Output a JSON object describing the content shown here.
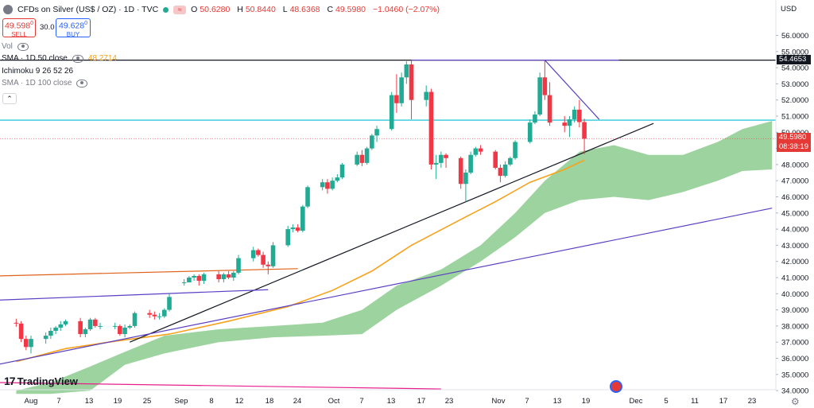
{
  "header": {
    "symbol_title": "CFDs on Silver (US$ / OZ) · 1D · TVC",
    "ohlc": [
      {
        "label": "O",
        "value": "50.6280"
      },
      {
        "label": "H",
        "value": "50.8440"
      },
      {
        "label": "L",
        "value": "48.6368"
      },
      {
        "label": "C",
        "value": "49.5980"
      },
      {
        "label": "",
        "value": "−1.0460 (−2.07%)"
      }
    ],
    "status_badge": "≈"
  },
  "trade": {
    "sell_price": "49.598",
    "sell_sup": "0",
    "sell_label": "SELL",
    "spread": "30.0",
    "buy_price": "49.628",
    "buy_sup": "0",
    "buy_label": "BUY"
  },
  "indicators": {
    "vol": "Vol",
    "sma50": "SMA · 1D 50 close",
    "sma50_value": "48.2714",
    "ichimoku": "Ichimoku 9 26 52 26",
    "sma100": "SMA · 1D 100 close",
    "collapse": "⌃"
  },
  "price_axis": {
    "currency": "USD",
    "labels": [
      "56.0000",
      "55.0000",
      "54.0000",
      "53.0000",
      "52.0000",
      "51.0000",
      "50.0000",
      "49.0000",
      "48.0000",
      "47.0000",
      "46.0000",
      "45.0000",
      "44.0000",
      "43.0000",
      "42.0000",
      "41.0000",
      "40.0000",
      "39.0000",
      "38.0000",
      "37.0000",
      "36.0000",
      "35.0000",
      "34.0000"
    ],
    "resistance_tag": "54.4653",
    "last_price_tag": "49.5980",
    "countdown_tag": "08:38:19"
  },
  "time_axis": {
    "labels": [
      "Aug",
      "7",
      "13",
      "19",
      "25",
      "Sep",
      "8",
      "12",
      "18",
      "24",
      "Oct",
      "7",
      "13",
      "17",
      "23",
      "Nov",
      "7",
      "13",
      "19",
      "Dec",
      "5",
      "11",
      "17",
      "23"
    ]
  },
  "logo": {
    "text": "TradingView",
    "mark": "17"
  },
  "colors": {
    "up": "#22ab94",
    "down": "#f23645",
    "sma50": "#f7a21b",
    "cloud": "#4caf50",
    "horizontal_level": "#00bcd4",
    "resistance": "#131722",
    "trendline_purple": "#5b3fc4",
    "trendline_orange": "#e0621a"
  },
  "chart_data": {
    "type": "candlestick",
    "symbol": "TVC:SILVER",
    "interval": "1D",
    "ylim": [
      34,
      56.5
    ],
    "candles": [
      {
        "date": "2025-07-29",
        "o": 38.2,
        "h": 38.45,
        "l": 37.95,
        "c": 38.15
      },
      {
        "date": "2025-07-30",
        "o": 38.15,
        "h": 38.3,
        "l": 37.0,
        "c": 37.2
      },
      {
        "date": "2025-07-31",
        "o": 37.2,
        "h": 37.4,
        "l": 36.5,
        "c": 36.7
      },
      {
        "date": "2025-08-01",
        "o": 36.7,
        "h": 37.4,
        "l": 36.3,
        "c": 37.2
      },
      {
        "date": "2025-08-04",
        "o": 37.2,
        "h": 37.6,
        "l": 36.9,
        "c": 37.4
      },
      {
        "date": "2025-08-05",
        "o": 37.4,
        "h": 37.9,
        "l": 37.2,
        "c": 37.7
      },
      {
        "date": "2025-08-06",
        "o": 37.7,
        "h": 38.0,
        "l": 37.5,
        "c": 37.9
      },
      {
        "date": "2025-08-07",
        "o": 37.9,
        "h": 38.3,
        "l": 37.7,
        "c": 38.1
      },
      {
        "date": "2025-08-08",
        "o": 38.1,
        "h": 38.4,
        "l": 38.0,
        "c": 38.3
      },
      {
        "date": "2025-08-11",
        "o": 38.3,
        "h": 38.5,
        "l": 37.3,
        "c": 37.5
      },
      {
        "date": "2025-08-12",
        "o": 37.5,
        "h": 37.9,
        "l": 37.3,
        "c": 37.8
      },
      {
        "date": "2025-08-13",
        "o": 37.8,
        "h": 38.5,
        "l": 37.7,
        "c": 38.4
      },
      {
        "date": "2025-08-14",
        "o": 38.4,
        "h": 38.5,
        "l": 37.9,
        "c": 38.0
      },
      {
        "date": "2025-08-15",
        "o": 38.0,
        "h": 38.2,
        "l": 37.8,
        "c": 38.0
      },
      {
        "date": "2025-08-18",
        "o": 38.0,
        "h": 38.2,
        "l": 37.8,
        "c": 38.0
      },
      {
        "date": "2025-08-19",
        "o": 38.0,
        "h": 38.1,
        "l": 37.4,
        "c": 37.5
      },
      {
        "date": "2025-08-20",
        "o": 37.5,
        "h": 38.1,
        "l": 37.3,
        "c": 37.9
      },
      {
        "date": "2025-08-21",
        "o": 37.9,
        "h": 38.1,
        "l": 37.8,
        "c": 38.0
      },
      {
        "date": "2025-08-22",
        "o": 38.0,
        "h": 38.9,
        "l": 37.9,
        "c": 38.8
      },
      {
        "date": "2025-08-25",
        "o": 38.8,
        "h": 39.0,
        "l": 38.5,
        "c": 38.7
      },
      {
        "date": "2025-08-26",
        "o": 38.7,
        "h": 38.9,
        "l": 38.4,
        "c": 38.6
      },
      {
        "date": "2025-08-27",
        "o": 38.6,
        "h": 38.8,
        "l": 38.4,
        "c": 38.6
      },
      {
        "date": "2025-08-28",
        "o": 38.6,
        "h": 39.1,
        "l": 38.5,
        "c": 39.0
      },
      {
        "date": "2025-08-29",
        "o": 39.0,
        "h": 40.0,
        "l": 38.9,
        "c": 39.8
      },
      {
        "date": "2025-09-01",
        "o": 40.7,
        "h": 40.9,
        "l": 40.5,
        "c": 40.7
      },
      {
        "date": "2025-09-02",
        "o": 40.7,
        "h": 41.1,
        "l": 40.7,
        "c": 41.0
      },
      {
        "date": "2025-09-03",
        "o": 41.0,
        "h": 41.2,
        "l": 40.8,
        "c": 41.1
      },
      {
        "date": "2025-09-04",
        "o": 41.1,
        "h": 41.2,
        "l": 40.5,
        "c": 40.8
      },
      {
        "date": "2025-09-05",
        "o": 40.8,
        "h": 41.3,
        "l": 40.6,
        "c": 41.2
      },
      {
        "date": "2025-09-08",
        "o": 41.2,
        "h": 41.4,
        "l": 40.7,
        "c": 40.9
      },
      {
        "date": "2025-09-09",
        "o": 40.9,
        "h": 41.3,
        "l": 40.7,
        "c": 41.2
      },
      {
        "date": "2025-09-10",
        "o": 41.2,
        "h": 41.4,
        "l": 40.9,
        "c": 41.0
      },
      {
        "date": "2025-09-11",
        "o": 41.0,
        "h": 41.4,
        "l": 40.8,
        "c": 41.3
      },
      {
        "date": "2025-09-12",
        "o": 41.3,
        "h": 42.4,
        "l": 41.2,
        "c": 42.2
      },
      {
        "date": "2025-09-15",
        "o": 42.2,
        "h": 42.9,
        "l": 42.0,
        "c": 42.7
      },
      {
        "date": "2025-09-16",
        "o": 42.7,
        "h": 42.8,
        "l": 42.3,
        "c": 42.4
      },
      {
        "date": "2025-09-17",
        "o": 42.4,
        "h": 42.6,
        "l": 41.6,
        "c": 41.8
      },
      {
        "date": "2025-09-18",
        "o": 41.8,
        "h": 42.0,
        "l": 41.2,
        "c": 41.7
      },
      {
        "date": "2025-09-19",
        "o": 41.7,
        "h": 43.2,
        "l": 41.6,
        "c": 43.0
      },
      {
        "date": "2025-09-22",
        "o": 43.0,
        "h": 44.2,
        "l": 42.9,
        "c": 44.0
      },
      {
        "date": "2025-09-23",
        "o": 44.0,
        "h": 44.3,
        "l": 43.8,
        "c": 44.1
      },
      {
        "date": "2025-09-24",
        "o": 44.1,
        "h": 44.3,
        "l": 43.8,
        "c": 43.9
      },
      {
        "date": "2025-09-25",
        "o": 43.9,
        "h": 45.5,
        "l": 43.8,
        "c": 45.4
      },
      {
        "date": "2025-09-26",
        "o": 45.4,
        "h": 46.7,
        "l": 45.3,
        "c": 46.6
      },
      {
        "date": "2025-09-29",
        "o": 46.6,
        "h": 47.1,
        "l": 46.4,
        "c": 46.9
      },
      {
        "date": "2025-09-30",
        "o": 46.9,
        "h": 47.1,
        "l": 46.2,
        "c": 46.5
      },
      {
        "date": "2025-10-01",
        "o": 46.5,
        "h": 47.2,
        "l": 46.4,
        "c": 47.0
      },
      {
        "date": "2025-10-02",
        "o": 47.0,
        "h": 47.4,
        "l": 46.9,
        "c": 47.2
      },
      {
        "date": "2025-10-03",
        "o": 47.2,
        "h": 48.1,
        "l": 47.1,
        "c": 48.0
      },
      {
        "date": "2025-10-06",
        "o": 48.0,
        "h": 48.8,
        "l": 47.9,
        "c": 48.6
      },
      {
        "date": "2025-10-07",
        "o": 48.6,
        "h": 48.9,
        "l": 47.9,
        "c": 48.1
      },
      {
        "date": "2025-10-08",
        "o": 48.1,
        "h": 49.1,
        "l": 48.0,
        "c": 49.0
      },
      {
        "date": "2025-10-09",
        "o": 49.0,
        "h": 49.9,
        "l": 48.9,
        "c": 49.8
      },
      {
        "date": "2025-10-10",
        "o": 49.8,
        "h": 50.4,
        "l": 49.4,
        "c": 50.2
      },
      {
        "date": "2025-10-13",
        "o": 50.2,
        "h": 52.5,
        "l": 50.1,
        "c": 52.3
      },
      {
        "date": "2025-10-14",
        "o": 52.3,
        "h": 53.6,
        "l": 51.2,
        "c": 51.8
      },
      {
        "date": "2025-10-15",
        "o": 51.8,
        "h": 53.7,
        "l": 51.6,
        "c": 53.4
      },
      {
        "date": "2025-10-16",
        "o": 53.4,
        "h": 54.4,
        "l": 53.0,
        "c": 54.2
      },
      {
        "date": "2025-10-17",
        "o": 54.2,
        "h": 54.47,
        "l": 50.8,
        "c": 52.0
      },
      {
        "date": "2025-10-20",
        "o": 52.0,
        "h": 52.9,
        "l": 51.6,
        "c": 52.5
      },
      {
        "date": "2025-10-21",
        "o": 52.5,
        "h": 52.7,
        "l": 47.7,
        "c": 48.0
      },
      {
        "date": "2025-10-22",
        "o": 48.0,
        "h": 48.6,
        "l": 47.1,
        "c": 48.1
      },
      {
        "date": "2025-10-23",
        "o": 48.1,
        "h": 48.8,
        "l": 47.8,
        "c": 48.6
      },
      {
        "date": "2025-10-24",
        "o": 48.6,
        "h": 48.7,
        "l": 47.8,
        "c": 48.4
      },
      {
        "date": "2025-10-27",
        "o": 48.4,
        "h": 48.5,
        "l": 46.5,
        "c": 46.8
      },
      {
        "date": "2025-10-28",
        "o": 46.8,
        "h": 47.7,
        "l": 45.7,
        "c": 47.5
      },
      {
        "date": "2025-10-29",
        "o": 47.5,
        "h": 48.8,
        "l": 47.4,
        "c": 48.6
      },
      {
        "date": "2025-10-30",
        "o": 48.6,
        "h": 49.1,
        "l": 48.5,
        "c": 49.0
      },
      {
        "date": "2025-10-31",
        "o": 49.0,
        "h": 49.2,
        "l": 48.6,
        "c": 48.8
      },
      {
        "date": "2025-11-03",
        "o": 48.8,
        "h": 48.9,
        "l": 47.7,
        "c": 47.8
      },
      {
        "date": "2025-11-04",
        "o": 47.8,
        "h": 48.0,
        "l": 46.9,
        "c": 47.3
      },
      {
        "date": "2025-11-05",
        "o": 47.3,
        "h": 48.2,
        "l": 47.2,
        "c": 48.0
      },
      {
        "date": "2025-11-06",
        "o": 48.0,
        "h": 48.5,
        "l": 47.9,
        "c": 48.4
      },
      {
        "date": "2025-11-07",
        "o": 48.4,
        "h": 49.5,
        "l": 48.3,
        "c": 49.4
      },
      {
        "date": "2025-11-10",
        "o": 49.4,
        "h": 50.8,
        "l": 49.3,
        "c": 50.6
      },
      {
        "date": "2025-11-11",
        "o": 50.6,
        "h": 51.3,
        "l": 50.5,
        "c": 51.1
      },
      {
        "date": "2025-11-12",
        "o": 51.1,
        "h": 53.7,
        "l": 51.0,
        "c": 53.4
      },
      {
        "date": "2025-11-13",
        "o": 53.4,
        "h": 54.46,
        "l": 52.0,
        "c": 52.3
      },
      {
        "date": "2025-11-14",
        "o": 52.3,
        "h": 53.1,
        "l": 50.4,
        "c": 50.6
      },
      {
        "date": "2025-11-17",
        "o": 50.6,
        "h": 51.0,
        "l": 50.0,
        "c": 50.4
      },
      {
        "date": "2025-11-18",
        "o": 50.4,
        "h": 51.0,
        "l": 49.7,
        "c": 50.8
      },
      {
        "date": "2025-11-19",
        "o": 50.8,
        "h": 51.6,
        "l": 50.6,
        "c": 51.4
      },
      {
        "date": "2025-11-20",
        "o": 51.4,
        "h": 52.0,
        "l": 50.3,
        "c": 50.63
      },
      {
        "date": "2025-11-21",
        "o": 50.63,
        "h": 50.84,
        "l": 48.64,
        "c": 49.6
      }
    ],
    "sma50": [
      {
        "date": "2025-07-29",
        "v": 35.8
      },
      {
        "date": "2025-08-08",
        "v": 36.6
      },
      {
        "date": "2025-08-19",
        "v": 37.1
      },
      {
        "date": "2025-08-29",
        "v": 37.5
      },
      {
        "date": "2025-09-10",
        "v": 38.3
      },
      {
        "date": "2025-09-22",
        "v": 39.2
      },
      {
        "date": "2025-10-01",
        "v": 40.2
      },
      {
        "date": "2025-10-09",
        "v": 41.4
      },
      {
        "date": "2025-10-17",
        "v": 43.0
      },
      {
        "date": "2025-10-27",
        "v": 44.6
      },
      {
        "date": "2025-11-03",
        "v": 45.7
      },
      {
        "date": "2025-11-10",
        "v": 46.9
      },
      {
        "date": "2025-11-17",
        "v": 47.7
      },
      {
        "date": "2025-11-21",
        "v": 48.27
      }
    ],
    "ichimoku_cloud": {
      "upper": [
        {
          "date": "2025-07-29",
          "v": 34.0
        },
        {
          "date": "2025-08-05",
          "v": 34.5
        },
        {
          "date": "2025-08-13",
          "v": 35.5
        },
        {
          "date": "2025-08-20",
          "v": 36.4
        },
        {
          "date": "2025-08-28",
          "v": 37.4
        },
        {
          "date": "2025-09-08",
          "v": 37.8
        },
        {
          "date": "2025-09-19",
          "v": 38.0
        },
        {
          "date": "2025-09-29",
          "v": 38.2
        },
        {
          "date": "2025-10-07",
          "v": 39.0
        },
        {
          "date": "2025-10-14",
          "v": 40.5
        },
        {
          "date": "2025-10-23",
          "v": 41.5
        },
        {
          "date": "2025-10-31",
          "v": 43.0
        },
        {
          "date": "2025-11-07",
          "v": 45.0
        },
        {
          "date": "2025-11-13",
          "v": 47.0
        },
        {
          "date": "2025-11-20",
          "v": 48.8
        },
        {
          "date": "2025-11-27",
          "v": 49.2
        },
        {
          "date": "2025-12-04",
          "v": 48.6
        },
        {
          "date": "2025-12-11",
          "v": 48.6
        },
        {
          "date": "2025-12-18",
          "v": 49.4
        },
        {
          "date": "2025-12-23",
          "v": 50.2
        },
        {
          "date": "2025-12-29",
          "v": 50.7
        }
      ],
      "lower": [
        {
          "date": "2025-07-29",
          "v": 33.8
        },
        {
          "date": "2025-08-05",
          "v": 33.8
        },
        {
          "date": "2025-08-13",
          "v": 34.0
        },
        {
          "date": "2025-08-20",
          "v": 35.6
        },
        {
          "date": "2025-08-28",
          "v": 36.3
        },
        {
          "date": "2025-09-08",
          "v": 37.0
        },
        {
          "date": "2025-09-19",
          "v": 37.3
        },
        {
          "date": "2025-09-29",
          "v": 37.4
        },
        {
          "date": "2025-10-07",
          "v": 37.5
        },
        {
          "date": "2025-10-14",
          "v": 39.0
        },
        {
          "date": "2025-10-23",
          "v": 40.5
        },
        {
          "date": "2025-10-31",
          "v": 42.0
        },
        {
          "date": "2025-11-07",
          "v": 43.5
        },
        {
          "date": "2025-11-13",
          "v": 45.0
        },
        {
          "date": "2025-11-20",
          "v": 45.8
        },
        {
          "date": "2025-11-27",
          "v": 46.0
        },
        {
          "date": "2025-12-04",
          "v": 45.8
        },
        {
          "date": "2025-12-11",
          "v": 46.3
        },
        {
          "date": "2025-12-18",
          "v": 47.0
        },
        {
          "date": "2025-12-23",
          "v": 47.6
        },
        {
          "date": "2025-12-29",
          "v": 47.7
        }
      ]
    },
    "drawings": [
      {
        "name": "resistance-line",
        "type": "horizontal",
        "price": 54.4653,
        "color": "#131722"
      },
      {
        "name": "level-line",
        "type": "horizontal",
        "price": 50.75,
        "color": "#00bcd4"
      },
      {
        "name": "support-trendline",
        "type": "segment",
        "from": {
          "date": "2025-08-21",
          "price": 37.0
        },
        "to": {
          "date": "2025-12-05",
          "price": 50.55
        },
        "color": "#131722"
      },
      {
        "name": "purple-long-trendline",
        "type": "segment",
        "from": {
          "date": "2025-07-25",
          "price": 35.6
        },
        "to": {
          "date": "2025-12-29",
          "price": 45.3
        },
        "color": "#5b3fc4"
      },
      {
        "name": "purple-short-trendline",
        "type": "segment",
        "from": {
          "date": "2025-07-25",
          "price": 39.6
        },
        "to": {
          "date": "2025-09-18",
          "price": 40.25
        },
        "color": "#5b3fc4"
      },
      {
        "name": "orange-trendline",
        "type": "segment",
        "from": {
          "date": "2025-07-25",
          "price": 41.1
        },
        "to": {
          "date": "2025-09-24",
          "price": 41.55
        },
        "color": "#e0621a"
      },
      {
        "name": "peak-connect-line",
        "type": "segment",
        "from": {
          "date": "2025-10-17",
          "price": 54.47
        },
        "to": {
          "date": "2025-11-28",
          "price": 54.47
        },
        "color": "#5b3fc4"
      },
      {
        "name": "descending-trendline",
        "type": "segment",
        "from": {
          "date": "2025-11-13",
          "price": 54.47
        },
        "to": {
          "date": "2025-11-24",
          "price": 50.8
        },
        "color": "#5b3fc4"
      },
      {
        "name": "magenta-bottom-line",
        "type": "segment",
        "from": {
          "date": "2025-07-25",
          "price": 34.5
        },
        "to": {
          "date": "2025-10-23",
          "price": 34.1
        },
        "color": "#e91e8c"
      }
    ]
  }
}
